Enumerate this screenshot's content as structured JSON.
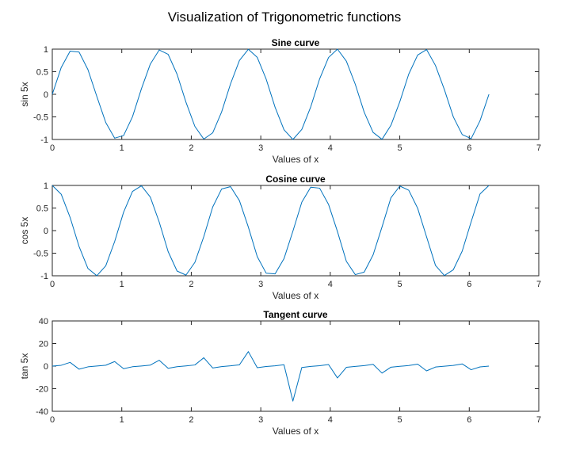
{
  "figure": {
    "suptitle": "Visualization of Trigonometric functions"
  },
  "chart_data": [
    {
      "type": "line",
      "title": "Sine curve",
      "xlabel": "Values of x",
      "ylabel": "sin 5x",
      "xlim": [
        0,
        7
      ],
      "ylim": [
        -1,
        1
      ],
      "xticks": [
        "0",
        "1",
        "2",
        "3",
        "4",
        "5",
        "6",
        "7"
      ],
      "yticks": [
        "1",
        "0.5",
        "0",
        "-0.5",
        "-1"
      ],
      "grid": false,
      "color": "#0072BD",
      "x": [
        0,
        0.1282,
        0.2565,
        0.3847,
        0.5129,
        0.6411,
        0.7694,
        0.8976,
        1.0258,
        1.1541,
        1.2823,
        1.4105,
        1.5387,
        1.667,
        1.7952,
        1.9234,
        2.0517,
        2.1799,
        2.3081,
        2.4363,
        2.5646,
        2.6928,
        2.821,
        2.9493,
        3.0775,
        3.2057,
        3.3339,
        3.4622,
        3.5904,
        3.7186,
        3.8468,
        3.9751,
        4.1033,
        4.2315,
        4.3598,
        4.488,
        4.6162,
        4.7444,
        4.8727,
        5.0009,
        5.1291,
        5.2574,
        5.3856,
        5.5138,
        5.642,
        5.7703,
        5.8985,
        6.0267,
        6.155,
        6.2832
      ],
      "y": [
        0,
        0.5929,
        0.9567,
        0.9372,
        0.5459,
        -0.0484,
        -0.6255,
        -0.9705,
        -0.9135,
        -0.4965,
        0.1221,
        0.6695,
        0.9821,
        0.8855,
        0.4449,
        -0.1745,
        -0.7105,
        -0.9911,
        -0.8533,
        -0.3913,
        0.2302,
        0.7485,
        0.997,
        0.8171,
        0.336,
        -0.2864,
        -0.7833,
        -0.9999,
        -0.7771,
        -0.2792,
        0.342,
        0.8147,
        0.9998,
        0.7336,
        0.2215,
        -0.3955,
        -0.8434,
        -0.9966,
        -0.6868,
        -0.163,
        0.4478,
        0.8689,
        0.9904,
        0.637,
        0.1039,
        -0.499,
        -0.891,
        -0.9811,
        -0.5844,
        0
      ]
    },
    {
      "type": "line",
      "title": "Cosine curve",
      "xlabel": "Values of x",
      "ylabel": "cos 5x",
      "xlim": [
        0,
        7
      ],
      "ylim": [
        -1,
        1
      ],
      "xticks": [
        "0",
        "1",
        "2",
        "3",
        "4",
        "5",
        "6",
        "7"
      ],
      "yticks": [
        "1",
        "0.5",
        "0",
        "-0.5",
        "-1"
      ],
      "grid": false,
      "color": "#0072BD",
      "x": [
        0,
        0.1282,
        0.2565,
        0.3847,
        0.5129,
        0.6411,
        0.7694,
        0.8976,
        1.0258,
        1.1541,
        1.2823,
        1.4105,
        1.5387,
        1.667,
        1.7952,
        1.9234,
        2.0517,
        2.1799,
        2.3081,
        2.4363,
        2.5646,
        2.6928,
        2.821,
        2.9493,
        3.0775,
        3.2057,
        3.3339,
        3.4622,
        3.5904,
        3.7186,
        3.8468,
        3.9751,
        4.1033,
        4.2315,
        4.3598,
        4.488,
        4.6162,
        4.7444,
        4.8727,
        5.0009,
        5.1291,
        5.2574,
        5.3856,
        5.5138,
        5.642,
        5.7703,
        5.8985,
        6.0267,
        6.155,
        6.2832
      ],
      "y": [
        1,
        0.8053,
        0.2912,
        -0.3487,
        -0.8379,
        -0.9988,
        -0.7801,
        -0.241,
        0.4066,
        0.868,
        0.9925,
        0.7428,
        0.1884,
        -0.4646,
        -0.895,
        -0.9847,
        -0.7038,
        -0.1339,
        0.5214,
        0.9203,
        0.973,
        0.6631,
        0.0776,
        -0.5763,
        -0.9419,
        -0.9581,
        -0.6216,
        -0.0126,
        0.6293,
        0.9602,
        0.9397,
        0.5798,
        -0.021,
        -0.6798,
        -0.9751,
        -0.9185,
        -0.5372,
        0.0801,
        0.727,
        0.9866,
        0.8941,
        0.4949,
        -0.1384,
        -0.7708,
        -0.9945,
        -0.8666,
        -0.4539,
        0.1937,
        0.8114,
        1
      ]
    },
    {
      "type": "line",
      "title": "Tangent curve",
      "xlabel": "Values of x",
      "ylabel": "tan 5x",
      "xlim": [
        0,
        7
      ],
      "ylim": [
        -40,
        40
      ],
      "xticks": [
        "0",
        "1",
        "2",
        "3",
        "4",
        "5",
        "6",
        "7"
      ],
      "yticks": [
        "40",
        "20",
        "0",
        "-20",
        "-40"
      ],
      "grid": false,
      "color": "#0072BD",
      "x": [
        0,
        0.1282,
        0.2565,
        0.3847,
        0.5129,
        0.6411,
        0.7694,
        0.8976,
        1.0258,
        1.1541,
        1.2823,
        1.4105,
        1.5387,
        1.667,
        1.7952,
        1.9234,
        2.0517,
        2.1799,
        2.3081,
        2.4363,
        2.5646,
        2.6928,
        2.821,
        2.9493,
        3.0775,
        3.2057,
        3.3339,
        3.4622,
        3.5904,
        3.7186,
        3.8468,
        3.9751,
        4.1033,
        4.2315,
        4.3598,
        4.488,
        4.6162,
        4.7444,
        4.8727,
        5.0009,
        5.1291,
        5.2574,
        5.3856,
        5.5138,
        5.642,
        5.7703,
        5.8985,
        6.0267,
        6.155,
        6.2832
      ],
      "y": [
        0,
        0.74,
        3.29,
        -2.69,
        -0.65,
        0.05,
        0.8,
        4.03,
        -2.25,
        -0.57,
        0.12,
        0.9,
        5.21,
        -1.91,
        -0.5,
        0.18,
        1.01,
        7.4,
        -1.64,
        -0.43,
        0.24,
        1.13,
        12.85,
        -1.42,
        -0.36,
        0.3,
        1.26,
        -31.0,
        -1.24,
        -0.29,
        0.36,
        1.41,
        -10.5,
        -1.08,
        -0.23,
        0.43,
        1.57,
        -6.2,
        -0.94,
        -0.17,
        0.5,
        1.76,
        -4.2,
        -0.83,
        -0.1,
        0.58,
        1.96,
        -3.2,
        -0.72,
        0
      ]
    }
  ]
}
